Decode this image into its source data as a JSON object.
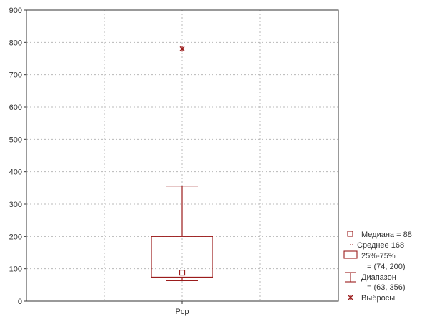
{
  "chart_data": {
    "type": "boxplot",
    "categories": [
      "Pcp"
    ],
    "ylim": [
      0,
      900
    ],
    "yticks": [
      0,
      100,
      200,
      300,
      400,
      500,
      600,
      700,
      800,
      900
    ],
    "grid": true,
    "box": {
      "category": "Pcp",
      "median": 88,
      "q1": 74,
      "q3": 200,
      "min": 63,
      "max": 356,
      "outliers": [
        780
      ]
    },
    "legend_placement": "bottom-right",
    "legend": [
      "Медиана = 88",
      "Среднее 168",
      "25%-75%",
      "= (74, 200)",
      "Диапазон",
      "= (63, 356)",
      "Выбросы"
    ],
    "colors": {
      "box": "#9b1c1c",
      "outlier": "#9b1c1c",
      "grid": "#b8b8b8",
      "axis": "#333333"
    }
  }
}
